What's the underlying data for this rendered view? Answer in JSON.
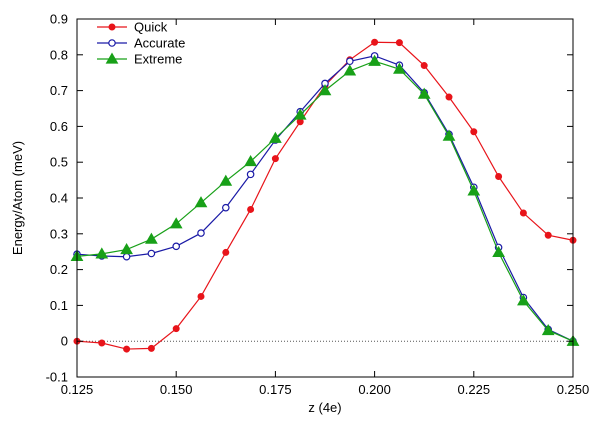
{
  "chart_data": {
    "type": "line",
    "title": "",
    "xlabel": "z (4e)",
    "ylabel": "Energy/Atom (meV)",
    "xlim": [
      0.125,
      0.25
    ],
    "ylim": [
      -0.1,
      0.9
    ],
    "xticks": [
      "0.125",
      "0.150",
      "0.175",
      "0.200",
      "0.225",
      "0.250"
    ],
    "xtick_values": [
      0.125,
      0.15,
      0.175,
      0.2,
      0.225,
      0.25
    ],
    "yticks": [
      "-0.1",
      "0",
      "0.1",
      "0.2",
      "0.3",
      "0.4",
      "0.5",
      "0.6",
      "0.7",
      "0.8",
      "0.9"
    ],
    "ytick_values": [
      -0.1,
      0,
      0.1,
      0.2,
      0.3,
      0.4,
      0.5,
      0.6,
      0.7,
      0.8,
      0.9
    ],
    "grid": false,
    "legend_position": "top-left",
    "zero_line": "dotted",
    "x": [
      0.125,
      0.13125,
      0.1375,
      0.14375,
      0.15,
      0.15625,
      0.1625,
      0.16875,
      0.175,
      0.18125,
      0.1875,
      0.19375,
      0.2,
      0.20625,
      0.2125,
      0.21875,
      0.225,
      0.23125,
      0.2375,
      0.24375,
      0.25
    ],
    "series": [
      {
        "name": "Quick",
        "color": "#e8141a",
        "marker": "filled-circle",
        "values": [
          0.0,
          -0.005,
          -0.022,
          -0.02,
          0.035,
          0.125,
          0.248,
          0.368,
          0.51,
          0.613,
          0.714,
          0.786,
          0.835,
          0.834,
          0.77,
          0.682,
          0.585,
          0.46,
          0.358,
          0.296,
          0.282
        ]
      },
      {
        "name": "Accurate",
        "color": "#1a1aa6",
        "marker": "open-circle",
        "values": [
          0.243,
          0.238,
          0.236,
          0.245,
          0.265,
          0.302,
          0.373,
          0.466,
          0.562,
          0.641,
          0.72,
          0.782,
          0.797,
          0.771,
          0.694,
          0.578,
          0.43,
          0.262,
          0.122,
          0.033,
          0.0
        ]
      },
      {
        "name": "Extreme",
        "color": "#18a018",
        "marker": "filled-triangle",
        "values": [
          0.237,
          0.244,
          0.256,
          0.285,
          0.328,
          0.387,
          0.447,
          0.502,
          0.567,
          0.632,
          0.7,
          0.755,
          0.782,
          0.76,
          0.69,
          0.573,
          0.42,
          0.248,
          0.113,
          0.03,
          0.0
        ]
      }
    ]
  }
}
